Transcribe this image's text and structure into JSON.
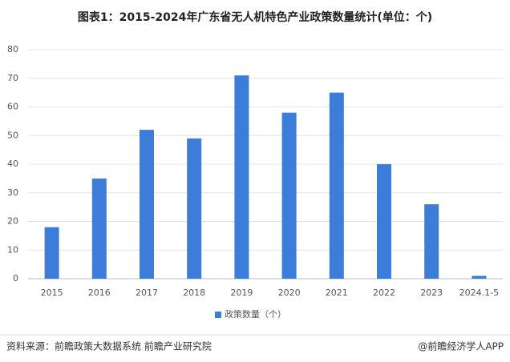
{
  "chart_data": {
    "type": "bar",
    "title": "图表1：2015-2024年广东省无人机特色产业政策数量统计(单位：个)",
    "categories": [
      "2015",
      "2016",
      "2017",
      "2018",
      "2019",
      "2020",
      "2021",
      "2022",
      "2023",
      "2024.1-5"
    ],
    "series": [
      {
        "name": "政策数量（个）",
        "color": "#3b7dd8",
        "values": [
          18,
          35,
          52,
          49,
          71,
          58,
          65,
          40,
          26,
          1
        ]
      }
    ],
    "ylim": [
      0,
      80
    ],
    "yticks": [
      0,
      10,
      20,
      30,
      40,
      50,
      60,
      70,
      80
    ],
    "grid": true,
    "legend": "bottom",
    "source": "资料来源：前瞻政策大数据系统 前瞻产业研究院",
    "credit": "@前瞻经济学人APP"
  }
}
